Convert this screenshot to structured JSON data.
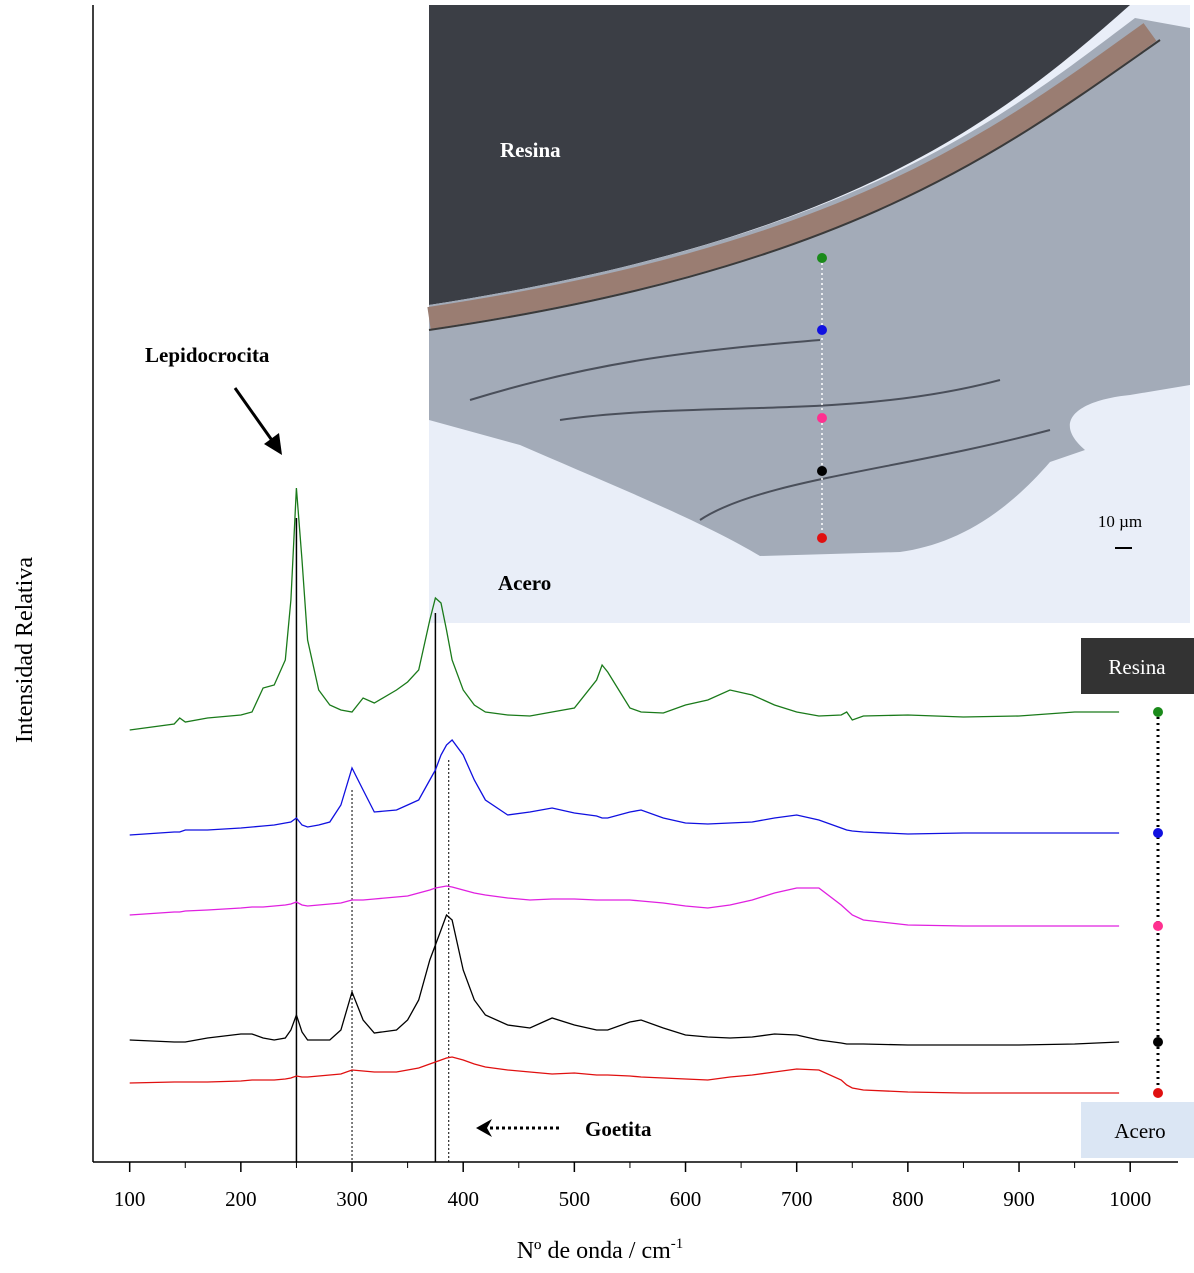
{
  "chart_data": {
    "type": "line",
    "y_label": "Intensidad Relativa",
    "x_label": "Nº de onda / cm",
    "x_label_superscript": "-1",
    "xlim": [
      67,
      1043
    ],
    "ylim": [
      0,
      1157
    ],
    "xticks": [
      100,
      200,
      300,
      400,
      500,
      600,
      700,
      800,
      900,
      1000
    ],
    "xticks_minor": [
      150,
      250,
      350,
      450,
      550,
      650,
      750,
      850,
      950
    ],
    "x": [
      100,
      140,
      145,
      150,
      170,
      200,
      210,
      220,
      230,
      240,
      245,
      250,
      255,
      260,
      270,
      280,
      290,
      300,
      310,
      320,
      340,
      350,
      360,
      370,
      375,
      380,
      385,
      390,
      400,
      410,
      420,
      440,
      460,
      480,
      500,
      520,
      525,
      530,
      550,
      560,
      580,
      600,
      620,
      640,
      660,
      680,
      700,
      720,
      740,
      745,
      750,
      760,
      800,
      850,
      900,
      950,
      990
    ],
    "series": [
      {
        "color": "#1a7a1a",
        "dot_color": "#1a8a1a",
        "values": [
          432,
          438,
          444,
          440,
          444,
          447,
          450,
          474,
          477,
          502,
          562,
          674,
          602,
          522,
          472,
          457,
          452,
          450,
          464,
          459,
          472,
          480,
          492,
          542,
          564,
          559,
          532,
          502,
          472,
          457,
          450,
          447,
          446,
          450,
          454,
          482,
          497,
          490,
          454,
          450,
          449,
          457,
          462,
          472,
          467,
          457,
          450,
          446,
          447,
          450,
          442,
          446,
          447,
          445,
          446,
          450,
          450
        ]
      },
      {
        "color": "#1010e0",
        "dot_color": "#1010e0",
        "values": [
          327,
          330,
          330,
          332,
          332,
          334,
          335,
          336,
          337,
          339,
          340,
          344,
          337,
          335,
          337,
          340,
          357,
          394,
          372,
          350,
          352,
          357,
          362,
          382,
          392,
          407,
          417,
          422,
          407,
          382,
          362,
          347,
          350,
          354,
          349,
          346,
          344,
          344,
          350,
          352,
          344,
          339,
          338,
          339,
          340,
          344,
          347,
          342,
          334,
          332,
          331,
          330,
          328,
          329,
          329,
          329,
          329
        ]
      },
      {
        "color": "#e020e0",
        "dot_color": "#ff3090",
        "values": [
          247,
          250,
          250,
          251,
          252,
          254,
          255,
          255,
          256,
          257,
          258,
          260,
          257,
          256,
          257,
          258,
          259,
          262,
          262,
          263,
          265,
          266,
          269,
          272,
          274,
          275,
          276,
          275,
          272,
          269,
          267,
          264,
          262,
          263,
          263,
          262,
          262,
          262,
          262,
          261,
          259,
          256,
          254,
          257,
          262,
          269,
          274,
          274,
          257,
          252,
          247,
          242,
          237,
          236,
          236,
          236,
          236
        ]
      },
      {
        "color": "#000000",
        "dot_color": "#000000",
        "values": [
          122,
          120,
          120,
          120,
          124,
          128,
          128,
          124,
          122,
          124,
          132,
          147,
          130,
          122,
          122,
          122,
          132,
          170,
          142,
          129,
          132,
          142,
          162,
          202,
          217,
          232,
          247,
          242,
          192,
          162,
          147,
          137,
          134,
          144,
          137,
          132,
          132,
          132,
          140,
          142,
          134,
          127,
          125,
          124,
          125,
          128,
          127,
          122,
          119,
          118,
          118,
          118,
          117,
          117,
          117,
          118,
          120
        ]
      },
      {
        "color": "#e01010",
        "dot_color": "#e01010",
        "values": [
          79,
          80,
          80,
          80,
          80,
          81,
          82,
          82,
          82,
          83,
          84,
          86,
          85,
          85,
          86,
          87,
          88,
          92,
          91,
          90,
          90,
          92,
          94,
          98,
          100,
          102,
          104,
          105,
          102,
          98,
          95,
          92,
          90,
          88,
          89,
          87,
          87,
          87,
          86,
          85,
          84,
          83,
          82,
          85,
          87,
          90,
          93,
          92,
          82,
          77,
          74,
          72,
          70,
          69,
          69,
          69,
          69
        ]
      }
    ],
    "vlines": [
      {
        "x": 250,
        "y": 644,
        "dashed": false
      },
      {
        "x": 375,
        "y": 549,
        "dashed": false
      },
      {
        "x": 300,
        "y": 372,
        "dashed": true
      },
      {
        "x": 387,
        "y": 402,
        "dashed": true
      }
    ],
    "annotations": {
      "lepidocrocita": "Lepidocrocita",
      "goetita": "Goetita"
    },
    "legend": {
      "top": "Resina",
      "bottom": "Acero"
    },
    "inset": {
      "resin": "Resina",
      "steel": "Acero",
      "scale": "10 µm"
    }
  }
}
